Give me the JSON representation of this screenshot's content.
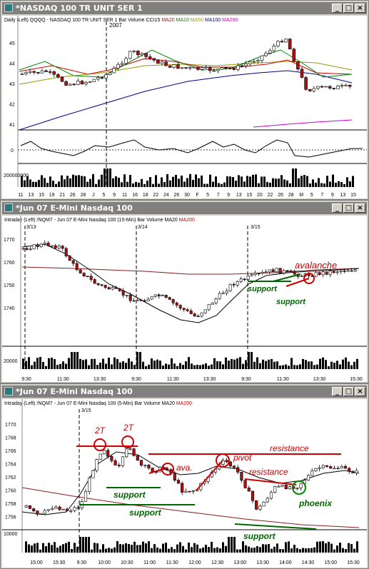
{
  "windows": [
    {
      "title": "*NASDAQ 100 TR UNIT SER 1",
      "header": [
        {
          "text": "Daily  (Left)   QQQQ - NASDAQ 100 TR UNIT SER 1  Bar  Volume  CCI15",
          "color": "#000000"
        },
        {
          "text": "MA20",
          "color": "#cc0000"
        },
        {
          "text": "MA10",
          "color": "#008800"
        },
        {
          "text": "MA50",
          "color": "#999900"
        },
        {
          "text": "MA100",
          "color": "#000088"
        },
        {
          "text": "MA200",
          "color": "#cc00cc"
        }
      ],
      "year_label": "2007",
      "y_ticks": [
        "45",
        "44",
        "43",
        "42",
        "41"
      ],
      "cci_tick": "0",
      "vol_tick": "200000000",
      "x_ticks": [
        "11",
        "13",
        "15",
        "19",
        "21",
        "26",
        "28",
        "J",
        "5",
        "9",
        "11",
        "16",
        "18",
        "22",
        "24",
        "26",
        "30",
        "F",
        "5",
        "7",
        "9",
        "13",
        "15",
        "20",
        "22",
        "26",
        "28",
        "M",
        "5",
        "7",
        "9",
        "13",
        "15"
      ]
    },
    {
      "title": "*Jun 07  E-Mini Nasdaq 100",
      "header": [
        {
          "text": "Intraday  (Left)   /NQM7 - Jun 07  E-Mini Nasdaq 100 (15-Min)  Bar  Volume  MA20",
          "color": "#000000"
        },
        {
          "text": "MA200",
          "color": "#cc0000"
        }
      ],
      "date_labels": [
        "3/13",
        "3/14",
        "3/15"
      ],
      "y_ticks": [
        "1770",
        "1760",
        "1750",
        "1740"
      ],
      "vol_tick": "20000",
      "x_ticks": [
        "9:30",
        "11:30",
        "13:30",
        "9:30",
        "11:30",
        "13:30",
        "9:30",
        "11:30",
        "13:30",
        "15:30"
      ],
      "annotations": {
        "avalanche": "avalanche",
        "support1": "support",
        "support2": "support"
      }
    },
    {
      "title": "*Jun 07  E-Mini Nasdaq 100",
      "header": [
        {
          "text": "Intraday  (Left)   /NQM7 - Jun 07  E-Mini Nasdaq 100 (5-Min)  Bar  Volume  MA20",
          "color": "#000000"
        },
        {
          "text": "MA200",
          "color": "#cc0000"
        }
      ],
      "date_label": "3/15",
      "y_ticks": [
        "1770",
        "1768",
        "1766",
        "1764",
        "1762",
        "1760",
        "1758",
        "1756"
      ],
      "vol_tick": "10000",
      "x_ticks": [
        "15:00",
        "15:30",
        "9:30",
        "10:00",
        "10:30",
        "11:00",
        "11:30",
        "12:00",
        "12:30",
        "13:00",
        "13:30",
        "14:00",
        "14:30",
        "15:00",
        "15:30"
      ],
      "annotations": {
        "two_t_1": "2T",
        "two_t_2": "2T",
        "ava": "ava.",
        "pivot": "pivot",
        "resistance1": "resistance",
        "resistance2": "resistance",
        "phoenix": "phoenix",
        "support1": "support",
        "support2": "support",
        "support3": "support"
      }
    }
  ],
  "colors": {
    "up_candle": "#ffffff",
    "down_candle": "#aa1111",
    "annotation_red": "#cc0000",
    "annotation_green": "#006600",
    "ma200_intraday": "#8b1a1a"
  }
}
